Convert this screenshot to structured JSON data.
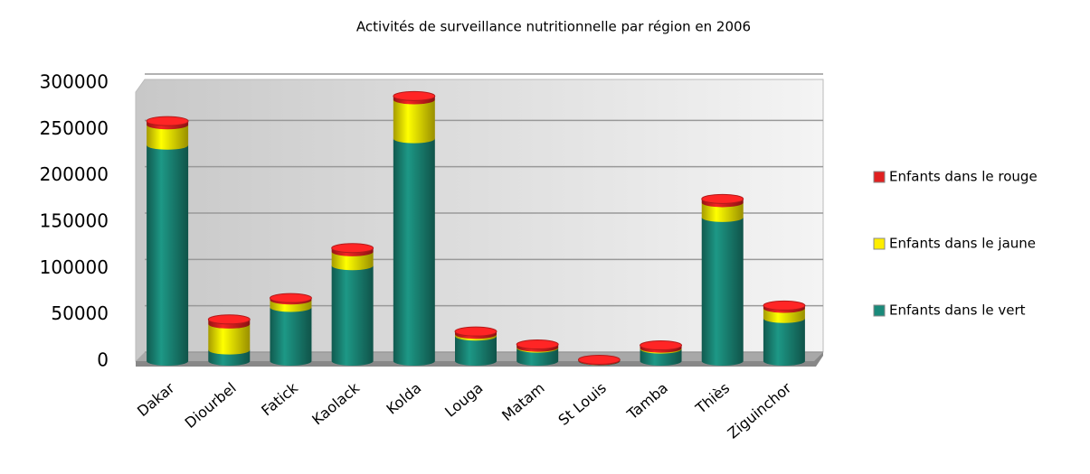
{
  "chart_data": {
    "type": "bar",
    "stacked": true,
    "title": "Activités de surveillance nutritionnelle par région en 2006",
    "categories": [
      "Dakar",
      "Diourbel",
      "Fatick",
      "Kaolack",
      "Kolda",
      "Louga",
      "Matam",
      "St Louis",
      "Tamba",
      "Thiès",
      "Ziguinchor"
    ],
    "series": [
      {
        "name": "Enfants dans le vert",
        "color": "#1a8a7a",
        "values": [
          233000,
          12000,
          58000,
          103000,
          240000,
          27000,
          14000,
          500,
          13000,
          155000,
          46000
        ]
      },
      {
        "name": "Enfants dans le jaune",
        "color": "#ffee00",
        "values": [
          22000,
          28000,
          8000,
          15000,
          42000,
          2000,
          1000,
          0,
          1000,
          16000,
          11000
        ]
      },
      {
        "name": "Enfants dans le rouge",
        "color": "#e02020",
        "values": [
          4000,
          5000,
          2000,
          4000,
          4000,
          3000,
          3000,
          1000,
          3000,
          4000,
          3000
        ]
      }
    ],
    "ylim": [
      0,
      300000
    ],
    "yticks": [
      0,
      50000,
      100000,
      150000,
      200000,
      250000,
      300000
    ],
    "grid": true,
    "legend": "right"
  }
}
